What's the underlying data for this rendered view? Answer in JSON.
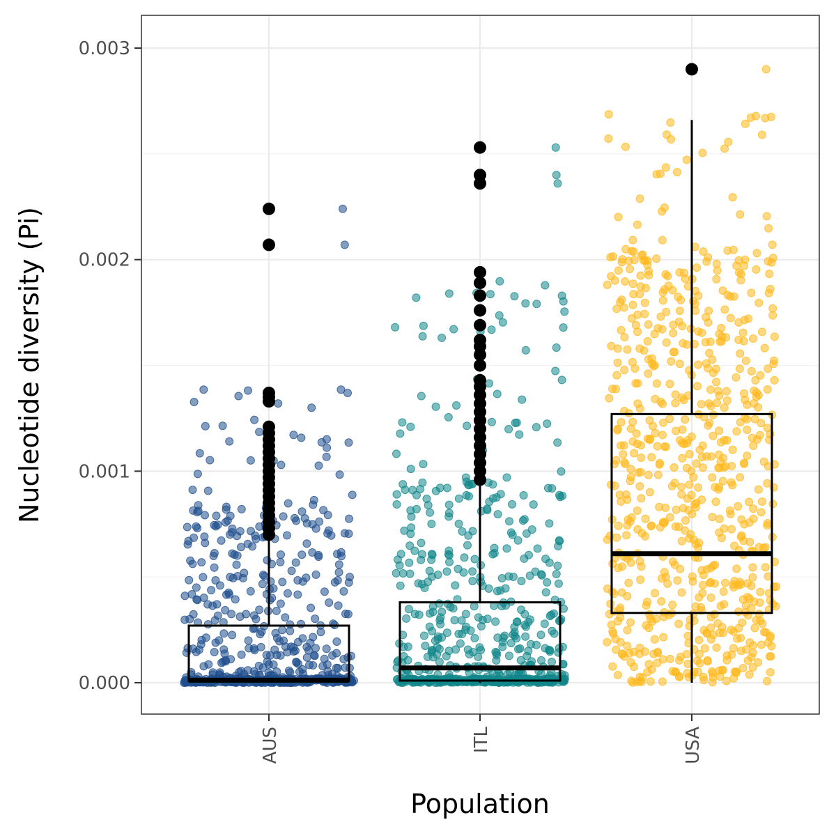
{
  "chart_data": {
    "type": "box",
    "xlabel": "Population",
    "ylabel": "Nucleotide diversity (Pi)",
    "ylim": [
      -0.00015,
      0.00315
    ],
    "y_ticks": [
      0.0,
      0.001,
      0.002,
      0.003
    ],
    "y_tick_labels": [
      "0.000",
      "0.001",
      "0.002",
      "0.003"
    ],
    "grid": true,
    "categories": [
      "AUS",
      "ITL",
      "USA"
    ],
    "groups": [
      {
        "name": "AUS",
        "color": "#1f4e8c",
        "q1": 8e-06,
        "median": 1.2e-05,
        "q3": 0.00027,
        "whisker_low": 0.0,
        "whisker_high": 0.00068,
        "outliers": [
          0.00224,
          0.00207,
          0.00137,
          0.00135,
          0.00133,
          0.00121,
          0.00118,
          0.00115,
          0.00112,
          0.00109,
          0.00106,
          0.00103,
          0.001,
          0.00097,
          0.00094,
          0.00091,
          0.00088,
          0.00085,
          0.00082,
          0.00079,
          0.00076,
          0.00073,
          0.0007
        ],
        "jitter_points": 600,
        "jitter_max": 0.00224
      },
      {
        "name": "ITL",
        "color": "#12878a",
        "q1": 1e-05,
        "median": 7e-05,
        "q3": 0.00038,
        "whisker_low": 0.0,
        "whisker_high": 0.00093,
        "outliers": [
          0.00253,
          0.0024,
          0.00236,
          0.00194,
          0.00189,
          0.00183,
          0.00176,
          0.00169,
          0.00162,
          0.00159,
          0.00155,
          0.0015,
          0.00143,
          0.0014,
          0.00136,
          0.00132,
          0.00128,
          0.00124,
          0.0012,
          0.00116,
          0.00112,
          0.00108,
          0.00104,
          0.001,
          0.00096
        ],
        "jitter_points": 620,
        "jitter_max": 0.00253
      },
      {
        "name": "USA",
        "color": "#ffb81c",
        "q1": 0.00033,
        "median": 0.00061,
        "q3": 0.00127,
        "whisker_low": 0.0,
        "whisker_high": 0.00266,
        "outliers": [
          0.0029
        ],
        "jitter_points": 700,
        "jitter_max": 0.0029
      }
    ]
  }
}
